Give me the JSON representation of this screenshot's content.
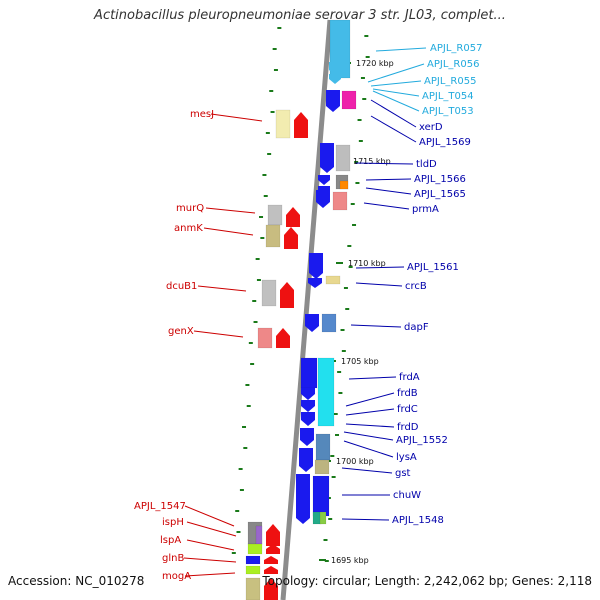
{
  "title": "Actinobacillus pleuropneumoniae serovar 3 str. JL03, complet...",
  "accession": "Accession: NC_010278",
  "summary": "Topology: circular; Length: 2,242,062 bp; Genes: 2,118",
  "colors": {
    "left_label": "#cc0000",
    "right_label": "#0000aa",
    "rna_label": "#22aadd",
    "tick": "#1a7a1a",
    "backbone": "#8c8c8c"
  },
  "kbp_ticks": [
    "1720 kbp",
    "1715 kbp",
    "1710 kbp",
    "1705 kbp",
    "1700 kbp",
    "1695 kbp"
  ],
  "left_genes": [
    "mesJ",
    "murQ",
    "anmK",
    "dcuB1",
    "genX",
    "APJL_1547",
    "ispH",
    "lspA",
    "glnB",
    "mogA"
  ],
  "right_genes": [
    "APJL_R057",
    "APJL_R056",
    "APJL_R055",
    "APJL_T054",
    "APJL_T053",
    "xerD",
    "APJL_1569",
    "tldD",
    "APJL_1566",
    "APJL_1565",
    "prmA",
    "APJL_1561",
    "crcB",
    "dapF",
    "frdA",
    "frdB",
    "frdC",
    "frdD",
    "APJL_1552",
    "lysA",
    "gst",
    "chuW",
    "APJL_1548"
  ]
}
